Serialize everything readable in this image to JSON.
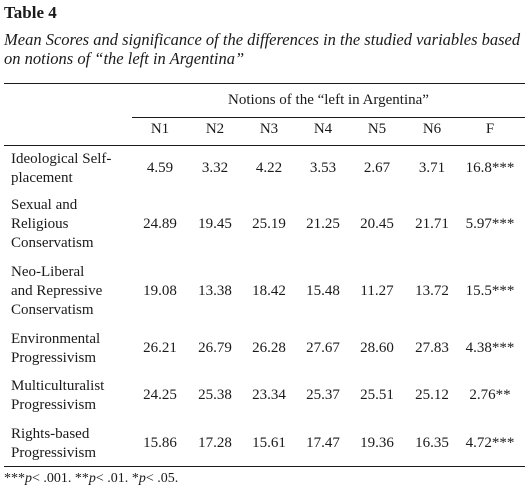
{
  "table_label": "Table 4",
  "caption": "Mean Scores and significance of the differences in the studied variables based on notions of “the left in Argentina”",
  "spanner": "Notions of the “left in Argentina”",
  "columns": [
    "N1",
    "N2",
    "N3",
    "N4",
    "N5",
    "N6",
    "F"
  ],
  "rows": [
    {
      "label_lines": [
        "Ideological Self-",
        "placement"
      ],
      "values": [
        "4.59",
        "3.32",
        "4.22",
        "3.53",
        "2.67",
        "3.71",
        "16.8***"
      ]
    },
    {
      "label_lines": [
        "Sexual and",
        "Religious",
        "Conservatism"
      ],
      "values": [
        "24.89",
        "19.45",
        "25.19",
        "21.25",
        "20.45",
        "21.71",
        "5.97***"
      ]
    },
    {
      "label_lines": [
        "Neo-Liberal",
        "and Repressive",
        "Conservatism"
      ],
      "values": [
        "19.08",
        "13.38",
        "18.42",
        "15.48",
        "11.27",
        "13.72",
        "15.5***"
      ]
    },
    {
      "label_lines": [
        "Environmental",
        "Progressivism"
      ],
      "values": [
        "26.21",
        "26.79",
        "26.28",
        "27.67",
        "28.60",
        "27.83",
        "4.38***"
      ]
    },
    {
      "label_lines": [
        "Multiculturalist",
        "Progressivism"
      ],
      "values": [
        "24.25",
        "25.38",
        "23.34",
        "25.37",
        "25.51",
        "25.12",
        "2.76**"
      ]
    },
    {
      "label_lines": [
        "Rights-based",
        "Progressivism"
      ],
      "values": [
        "15.86",
        "17.28",
        "15.61",
        "17.47",
        "19.36",
        "16.35",
        "4.72***"
      ]
    }
  ],
  "note": {
    "p001_prefix": "***",
    "p001_p": "p",
    "p001_text": "< .001. ",
    "p01_prefix": "**",
    "p01_p": "p",
    "p01_text": "< .01. ",
    "p05_prefix": "*",
    "p05_p": "p",
    "p05_text": "< .05."
  }
}
